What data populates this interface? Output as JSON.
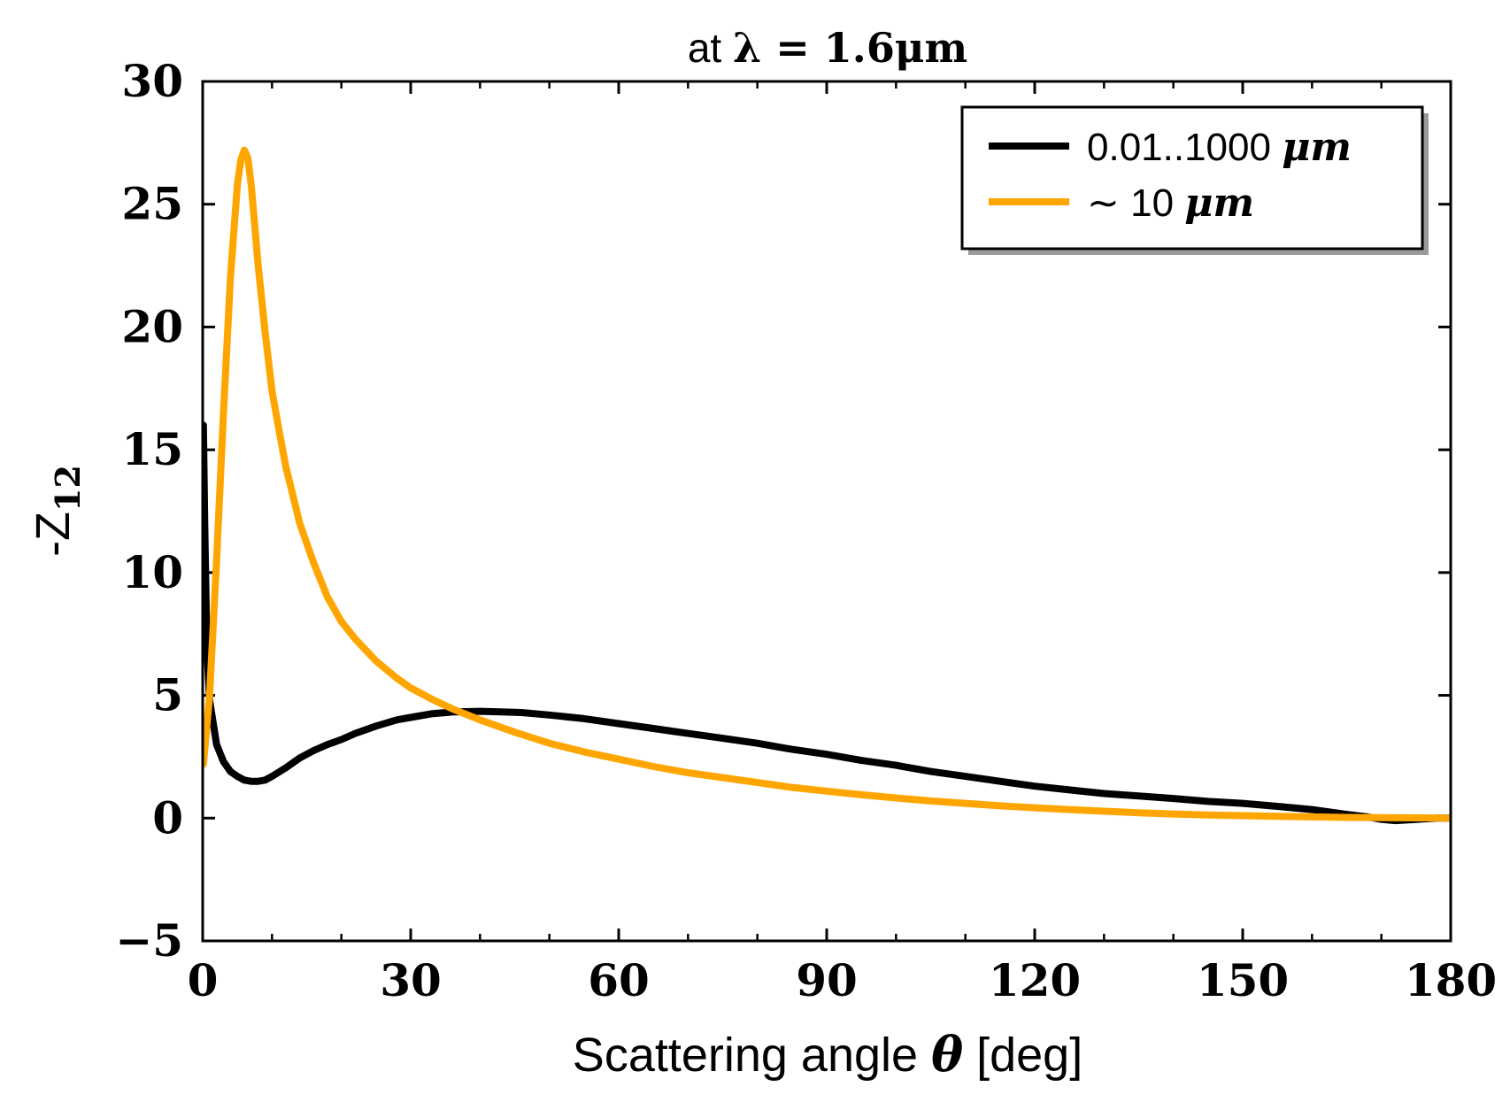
{
  "chart_data": {
    "type": "line",
    "title": {
      "prefix": "at ",
      "math": "λ = 1.6μm"
    },
    "xlabel": {
      "prefix": "Scattering angle ",
      "symbol": "θ",
      "suffix": " [deg]"
    },
    "ylabel": {
      "prefix": "-Z",
      "subscript": "12"
    },
    "xlim": [
      0,
      180
    ],
    "ylim": [
      -5,
      30
    ],
    "x_ticks": [
      0,
      30,
      60,
      90,
      120,
      150,
      180
    ],
    "x_tick_labels": [
      "0",
      "30",
      "60",
      "90",
      "120",
      "150",
      "180"
    ],
    "x_minor_step": 10,
    "y_ticks": [
      -5,
      0,
      5,
      10,
      15,
      20,
      25,
      30
    ],
    "y_tick_labels": [
      "−5",
      "0",
      "5",
      "10",
      "15",
      "20",
      "25",
      "30"
    ],
    "legend_position": "top-right",
    "series": [
      {
        "name": "0.01..1000 μm",
        "legend_label": {
          "text": "0.01..1000 ",
          "unit": "μm"
        },
        "color": "#000000",
        "points": [
          [
            0.1,
            16
          ],
          [
            0.3,
            12
          ],
          [
            0.6,
            7
          ],
          [
            1,
            4.8
          ],
          [
            2,
            3
          ],
          [
            3,
            2.3
          ],
          [
            4,
            1.9
          ],
          [
            5,
            1.7
          ],
          [
            6,
            1.55
          ],
          [
            7,
            1.5
          ],
          [
            8,
            1.5
          ],
          [
            9,
            1.55
          ],
          [
            10,
            1.7
          ],
          [
            12,
            2.05
          ],
          [
            14,
            2.45
          ],
          [
            16,
            2.75
          ],
          [
            18,
            3.0
          ],
          [
            20,
            3.2
          ],
          [
            22,
            3.45
          ],
          [
            25,
            3.75
          ],
          [
            28,
            4.0
          ],
          [
            30,
            4.1
          ],
          [
            33,
            4.25
          ],
          [
            36,
            4.32
          ],
          [
            40,
            4.35
          ],
          [
            43,
            4.33
          ],
          [
            46,
            4.3
          ],
          [
            50,
            4.2
          ],
          [
            55,
            4.05
          ],
          [
            60,
            3.85
          ],
          [
            65,
            3.65
          ],
          [
            70,
            3.45
          ],
          [
            75,
            3.25
          ],
          [
            80,
            3.05
          ],
          [
            85,
            2.8
          ],
          [
            90,
            2.6
          ],
          [
            95,
            2.35
          ],
          [
            100,
            2.15
          ],
          [
            105,
            1.9
          ],
          [
            110,
            1.7
          ],
          [
            115,
            1.5
          ],
          [
            120,
            1.3
          ],
          [
            125,
            1.15
          ],
          [
            130,
            1.0
          ],
          [
            135,
            0.9
          ],
          [
            140,
            0.8
          ],
          [
            145,
            0.68
          ],
          [
            150,
            0.6
          ],
          [
            155,
            0.48
          ],
          [
            160,
            0.35
          ],
          [
            165,
            0.15
          ],
          [
            168,
            0.05
          ],
          [
            170,
            -0.05
          ],
          [
            172,
            -0.1
          ],
          [
            175,
            -0.05
          ],
          [
            178,
            0.0
          ],
          [
            180,
            0.0
          ]
        ]
      },
      {
        "name": "~10 μm",
        "legend_label": {
          "text": "∼ 10 ",
          "unit": "μm"
        },
        "color": "#ffa500",
        "points": [
          [
            0.1,
            2.2
          ],
          [
            1,
            5
          ],
          [
            2,
            10.5
          ],
          [
            3,
            16.5
          ],
          [
            4,
            22
          ],
          [
            5,
            25.8
          ],
          [
            5.5,
            26.8
          ],
          [
            6,
            27.2
          ],
          [
            6.5,
            26.9
          ],
          [
            7,
            25.8
          ],
          [
            8,
            22.5
          ],
          [
            9,
            19.8
          ],
          [
            10,
            17.4
          ],
          [
            11,
            15.8
          ],
          [
            12,
            14.3
          ],
          [
            14,
            12.0
          ],
          [
            16,
            10.4
          ],
          [
            18,
            9.0
          ],
          [
            20,
            8.0
          ],
          [
            22,
            7.3
          ],
          [
            25,
            6.4
          ],
          [
            28,
            5.7
          ],
          [
            30,
            5.3
          ],
          [
            33,
            4.85
          ],
          [
            36,
            4.45
          ],
          [
            40,
            4.0
          ],
          [
            45,
            3.5
          ],
          [
            50,
            3.05
          ],
          [
            55,
            2.7
          ],
          [
            60,
            2.4
          ],
          [
            65,
            2.1
          ],
          [
            70,
            1.85
          ],
          [
            75,
            1.65
          ],
          [
            80,
            1.45
          ],
          [
            85,
            1.25
          ],
          [
            90,
            1.1
          ],
          [
            95,
            0.95
          ],
          [
            100,
            0.82
          ],
          [
            105,
            0.7
          ],
          [
            110,
            0.6
          ],
          [
            115,
            0.5
          ],
          [
            120,
            0.42
          ],
          [
            125,
            0.35
          ],
          [
            130,
            0.28
          ],
          [
            135,
            0.22
          ],
          [
            140,
            0.17
          ],
          [
            145,
            0.13
          ],
          [
            150,
            0.1
          ],
          [
            155,
            0.07
          ],
          [
            160,
            0.05
          ],
          [
            165,
            0.03
          ],
          [
            170,
            0.02
          ],
          [
            175,
            0.01
          ],
          [
            180,
            0.0
          ]
        ]
      }
    ]
  }
}
